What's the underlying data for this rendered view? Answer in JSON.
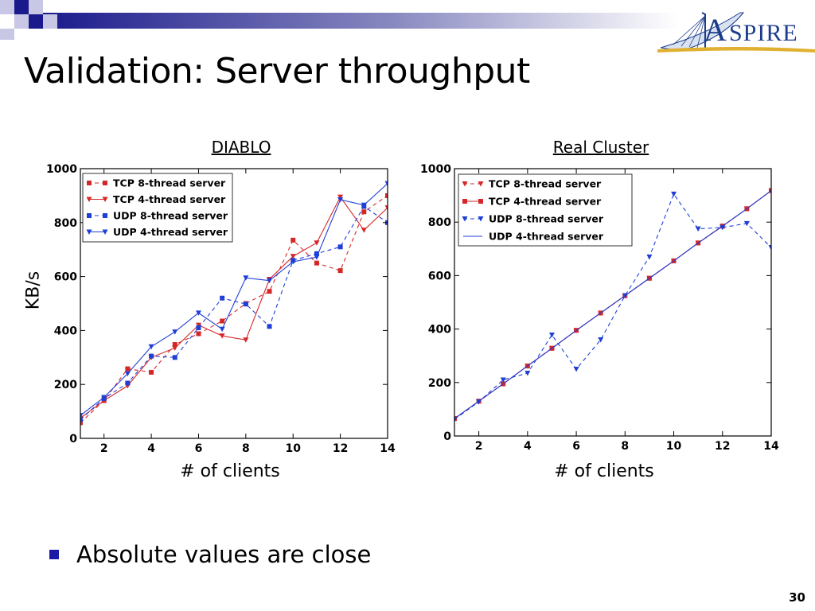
{
  "slide": {
    "title": "Validation: Server throughput",
    "bullet": "Absolute values are close",
    "page_number": "30",
    "logo_text": "ASPIRE",
    "colors": {
      "band_dark": "#1a1a8c",
      "bullet": "#1a1aa6",
      "logo_blue": "#1b3c8c",
      "logo_gold": "#e0b030"
    }
  },
  "chart_data": [
    {
      "type": "line",
      "title": "DIABLO",
      "xlabel": "# of clients",
      "ylabel": "KB/s",
      "xlim": [
        1,
        14
      ],
      "ylim": [
        0,
        1000
      ],
      "xticks": [
        2,
        4,
        6,
        8,
        10,
        12,
        14
      ],
      "yticks": [
        0,
        200,
        400,
        600,
        800,
        1000
      ],
      "grid": false,
      "legend": "top-left",
      "x": [
        1,
        2,
        3,
        4,
        5,
        6,
        7,
        8,
        9,
        10,
        11,
        12,
        13,
        14
      ],
      "series": [
        {
          "name": "TCP 8-thread server",
          "color": "#d62728",
          "dashed": true,
          "marker": "square",
          "values": [
            58,
            140,
            258,
            245,
            348,
            388,
            435,
            500,
            545,
            735,
            650,
            622,
            840,
            900
          ]
        },
        {
          "name": "TCP 4-thread server",
          "color": "#d62728",
          "dashed": false,
          "marker": "triangle-down",
          "values": [
            75,
            140,
            195,
            300,
            335,
            420,
            380,
            365,
            590,
            675,
            725,
            895,
            772,
            855
          ]
        },
        {
          "name": "UDP 8-thread server",
          "color": "#1f3fd6",
          "dashed": true,
          "marker": "square",
          "values": [
            70,
            148,
            205,
            305,
            300,
            410,
            520,
            498,
            415,
            660,
            685,
            710,
            860,
            800
          ]
        },
        {
          "name": "UDP 4-thread server",
          "color": "#1f3fd6",
          "dashed": false,
          "marker": "triangle-down",
          "values": [
            85,
            152,
            240,
            340,
            395,
            465,
            405,
            595,
            585,
            655,
            672,
            885,
            865,
            945
          ]
        }
      ]
    },
    {
      "type": "line",
      "title": "Real Cluster",
      "xlabel": "# of clients",
      "ylabel": "",
      "xlim": [
        1,
        14
      ],
      "ylim": [
        0,
        1000
      ],
      "xticks": [
        2,
        4,
        6,
        8,
        10,
        12,
        14
      ],
      "yticks": [
        0,
        200,
        400,
        600,
        800,
        1000
      ],
      "grid": false,
      "legend": "top-left",
      "x": [
        1,
        2,
        3,
        4,
        5,
        6,
        7,
        8,
        9,
        10,
        11,
        12,
        13,
        14
      ],
      "series": [
        {
          "name": "TCP 8-thread server",
          "color": "#d62728",
          "dashed": true,
          "marker": "triangle-down",
          "values": [
            65,
            130,
            195,
            262,
            328,
            395,
            460,
            525,
            590,
            655,
            722,
            785,
            850,
            918
          ]
        },
        {
          "name": "TCP 4-thread server",
          "color": "#d62728",
          "dashed": false,
          "marker": "square",
          "values": [
            65,
            130,
            195,
            262,
            328,
            395,
            460,
            525,
            590,
            655,
            722,
            785,
            850,
            918
          ]
        },
        {
          "name": "UDP 8-thread server",
          "color": "#1f3fd6",
          "dashed": true,
          "marker": "triangle-down",
          "values": [
            62,
            128,
            210,
            235,
            378,
            250,
            360,
            525,
            670,
            905,
            775,
            780,
            795,
            705
          ]
        },
        {
          "name": "UDP 4-thread server",
          "color": "#1f3fd6",
          "dashed": false,
          "marker": "none",
          "values": [
            65,
            130,
            195,
            262,
            328,
            395,
            460,
            525,
            590,
            655,
            722,
            785,
            850,
            918
          ]
        }
      ]
    }
  ]
}
